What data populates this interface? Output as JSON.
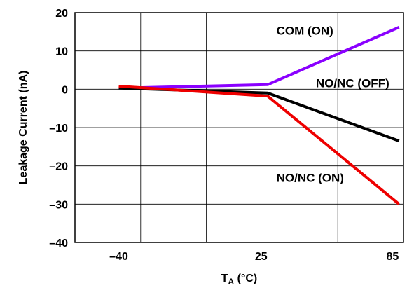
{
  "chart_data": {
    "type": "line",
    "xlabel_main": "T",
    "xlabel_sub": "A",
    "xlabel_unit": " (°C)",
    "ylabel": "Leakage Current (nA)",
    "x_ticks": [
      -40,
      25,
      85
    ],
    "x_tick_labels": [
      "–40",
      "25",
      "85"
    ],
    "y_ticks": [
      -40,
      -30,
      -20,
      -10,
      0,
      10,
      20
    ],
    "y_tick_labels": [
      "–40",
      "–30",
      "–20",
      "–10",
      "0",
      "10",
      "20"
    ],
    "xlim": [
      -60,
      90
    ],
    "ylim": [
      -40,
      20
    ],
    "grid": true,
    "series": [
      {
        "name": "COM (ON)",
        "color": "#8a00ff",
        "x": [
          -40,
          28,
          88
        ],
        "y": [
          0.3,
          1.2,
          16.2
        ]
      },
      {
        "name": "NO/NC (OFF)",
        "color": "#000000",
        "x": [
          -40,
          28,
          88
        ],
        "y": [
          0.3,
          -1.0,
          -13.5
        ]
      },
      {
        "name": "NO/NC (ON)",
        "color": "#ee0000",
        "x": [
          -40,
          28,
          88
        ],
        "y": [
          0.8,
          -1.8,
          -30.0
        ]
      }
    ],
    "annotations": [
      {
        "text": "COM (ON)",
        "x": 32,
        "y": 14.2
      },
      {
        "text": "NO/NC (OFF)",
        "x": 50,
        "y": 0.5
      },
      {
        "text": "NO/NC (ON)",
        "x": 32,
        "y": -24.2
      }
    ]
  }
}
